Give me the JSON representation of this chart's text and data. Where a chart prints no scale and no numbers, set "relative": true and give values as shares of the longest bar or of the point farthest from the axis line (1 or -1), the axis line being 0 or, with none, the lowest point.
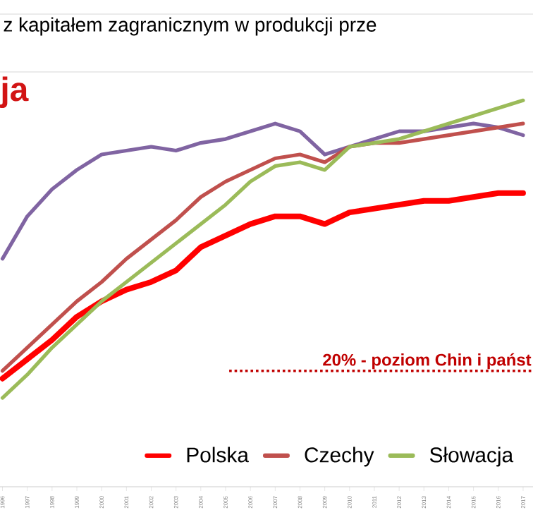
{
  "chart_data": {
    "type": "line",
    "title": "z kapitałem zagranicznym w produkcji prze",
    "annotations": [
      "ja"
    ],
    "relative": true,
    "x": [
      1996,
      1997,
      1998,
      1999,
      2000,
      2001,
      2002,
      2003,
      2004,
      2005,
      2006,
      2007,
      2008,
      2009,
      2010,
      2011,
      2012,
      2013,
      2014,
      2015,
      2016,
      2017
    ],
    "xlim": [
      1995.9,
      2017.4
    ],
    "xticks": [
      1996,
      1997,
      1998,
      1999,
      2000,
      2001,
      2002,
      2003,
      2004,
      2005,
      2006,
      2007,
      2008,
      2009,
      2010,
      2011,
      2012,
      2013,
      2014,
      2015,
      2016,
      2017
    ],
    "series": [
      {
        "color": "#8064a2",
        "values": [
          0.59,
          0.7,
          0.77,
          0.82,
          0.86,
          0.87,
          0.88,
          0.87,
          0.89,
          0.9,
          0.92,
          0.94,
          0.92,
          0.86,
          0.88,
          0.9,
          0.92,
          0.92,
          0.93,
          0.94,
          0.93,
          0.91
        ]
      },
      {
        "name": "Polska",
        "color": "#ff0000",
        "values": [
          0.28,
          0.33,
          0.38,
          0.44,
          0.48,
          0.51,
          0.53,
          0.56,
          0.62,
          0.65,
          0.68,
          0.7,
          0.7,
          0.68,
          0.71,
          0.72,
          0.73,
          0.74,
          0.74,
          0.75,
          0.76,
          0.76
        ]
      },
      {
        "name": "Czechy",
        "color": "#c0504d",
        "values": [
          0.3,
          0.36,
          0.42,
          0.48,
          0.53,
          0.59,
          0.64,
          0.69,
          0.75,
          0.79,
          0.82,
          0.85,
          0.86,
          0.84,
          0.88,
          0.89,
          0.89,
          0.9,
          0.91,
          0.92,
          0.93,
          0.94
        ]
      },
      {
        "name": "Słowacja",
        "color": "#9bbb59",
        "values": [
          0.23,
          0.29,
          0.36,
          0.42,
          0.48,
          0.53,
          0.58,
          0.63,
          0.68,
          0.73,
          0.79,
          0.83,
          0.84,
          0.82,
          0.88,
          0.89,
          0.9,
          0.92,
          0.94,
          0.96,
          0.98,
          1.0
        ]
      }
    ],
    "ref_lines": [
      {
        "axis": "y",
        "value": 0.3,
        "label": "20% - poziom Chin i państ",
        "color": "#c00000",
        "line_style": "dotted"
      }
    ],
    "legend": "bottom",
    "marker": "none",
    "line_style": "solid"
  }
}
